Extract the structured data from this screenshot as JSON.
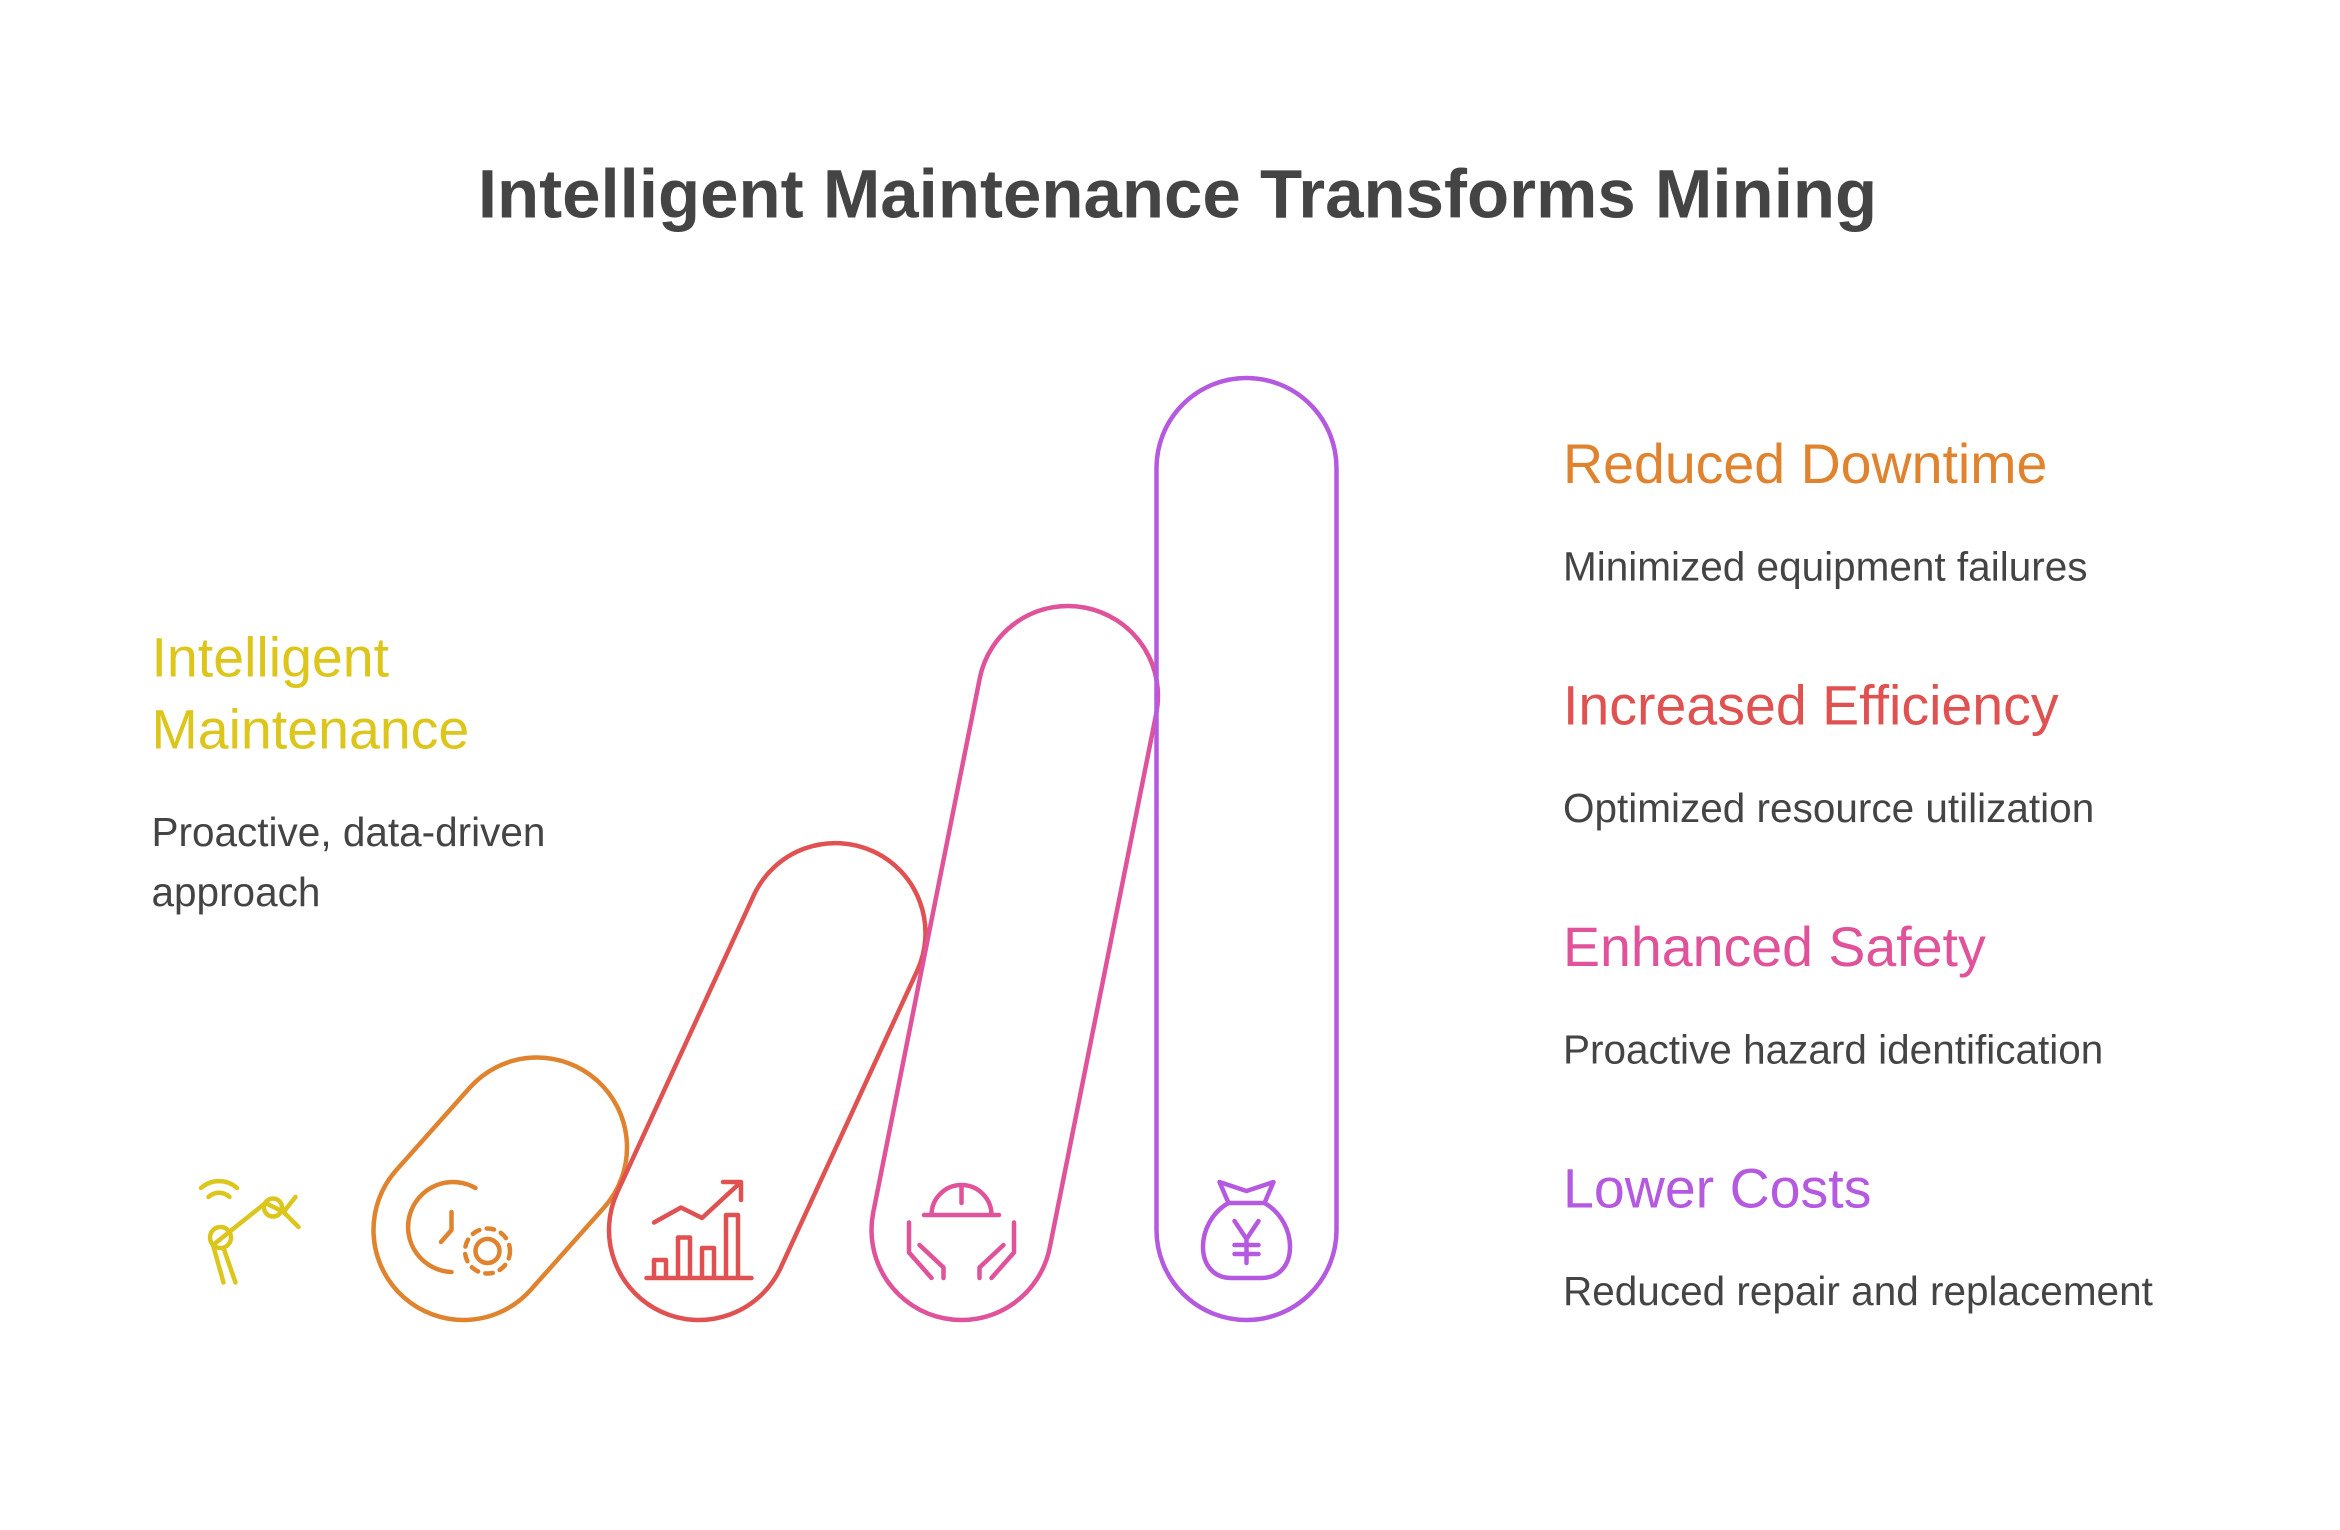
{
  "title": "Intelligent Maintenance Transforms Mining",
  "intro": {
    "title_lines": [
      "Intelligent",
      "Maintenance"
    ],
    "description_lines": [
      "Proactive, data-driven",
      "approach"
    ],
    "color": "#dcc61c"
  },
  "items": [
    {
      "title": "Reduced Downtime",
      "description": "Minimized equipment failures",
      "color": "#e0832f"
    },
    {
      "title": "Increased Efficiency",
      "description": "Optimized resource utilization",
      "color": "#e05252"
    },
    {
      "title": "Enhanced Safety",
      "description": "Proactive hazard identification",
      "color": "#e0529a"
    },
    {
      "title": "Lower Costs",
      "description": "Reduced repair and replacement",
      "color": "#b55ae0"
    }
  ]
}
